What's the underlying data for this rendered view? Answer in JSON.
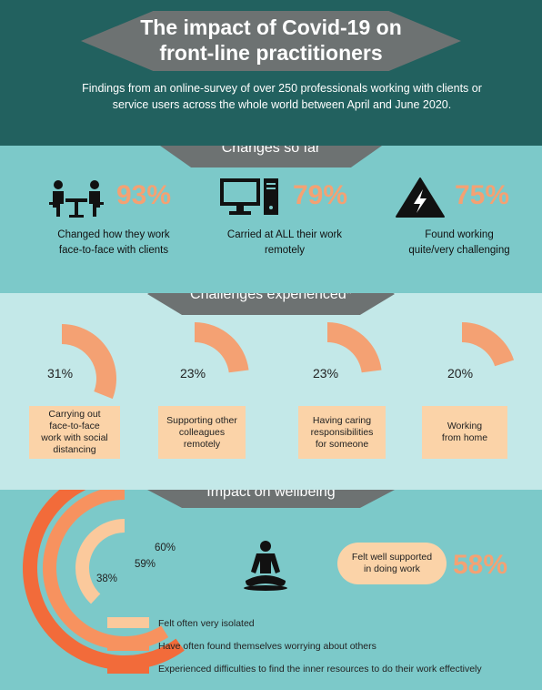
{
  "header": {
    "title_line1": "The impact of Covid-19 on",
    "title_line2": "front-line practitioners",
    "subtitle_line1": "Findings from an online-survey of over 250 professionals working with clients or",
    "subtitle_line2": "service users across the whole world between April and June 2020."
  },
  "changes": {
    "heading": "Changes so far",
    "items": [
      {
        "icon": "people-meeting-icon",
        "value": "93%",
        "line1": "Changed how they work",
        "line2": "face-to-face with clients"
      },
      {
        "icon": "computer-icon",
        "value": "79%",
        "line1": "Carried at ALL their work",
        "line2": "remotely"
      },
      {
        "icon": "warning-lightning-icon",
        "value": "75%",
        "line1": "Found working",
        "line2": "quite/very challenging"
      }
    ]
  },
  "challenges": {
    "heading": "Challenges experienced*",
    "items": [
      {
        "value": "31%",
        "fraction": 0.31,
        "line1": "Carrying out",
        "line2": "face-to-face",
        "line3": "work with social",
        "line4": "distancing"
      },
      {
        "value": "23%",
        "fraction": 0.23,
        "line1": "Supporting other",
        "line2": "colleagues",
        "line3": "remotely"
      },
      {
        "value": "23%",
        "fraction": 0.23,
        "line1": "Having caring",
        "line2": "responsibilities",
        "line3": "for someone"
      },
      {
        "value": "20%",
        "fraction": 0.2,
        "line1": "Working",
        "line2": "from home"
      }
    ]
  },
  "wellbeing": {
    "heading": "Impact on wellbeing",
    "rings": [
      {
        "value": "60%",
        "fraction": 0.6,
        "color": "#f26b3a",
        "label": "Experienced difficulties to find the inner resources to do their work effectively"
      },
      {
        "value": "59%",
        "fraction": 0.59,
        "color": "#f7925f",
        "label": "Have often found themselves worrying about others"
      },
      {
        "value": "38%",
        "fraction": 0.38,
        "color": "#fbc99c",
        "label": "Felt often very isolated"
      }
    ],
    "support": {
      "icon": "meditation-icon",
      "line1": "Felt well supported",
      "line2": "in doing work",
      "value": "58%"
    }
  },
  "colors": {
    "dark_teal": "#22615f",
    "teal": "#7cc9c9",
    "light_teal": "#c3e8e8",
    "grey": "#6d7272",
    "orange": "#f4a173",
    "peach": "#fbd3a8"
  }
}
